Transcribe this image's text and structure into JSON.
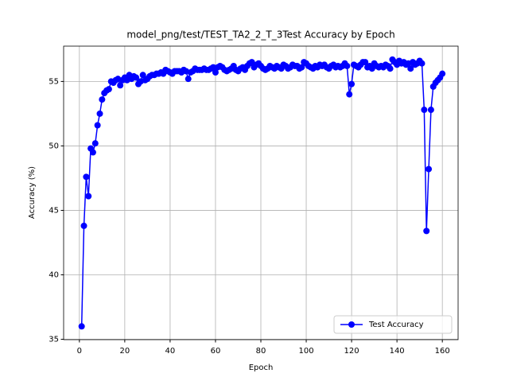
{
  "chart_data": {
    "type": "line",
    "title": "model_png/test/TEST_TA2_2_T_3Test Accuracy by Epoch",
    "xlabel": "Epoch",
    "ylabel": "Accuracy (%)",
    "x": [
      1,
      2,
      3,
      4,
      5,
      6,
      7,
      8,
      9,
      10,
      11,
      12,
      13,
      14,
      15,
      16,
      17,
      18,
      19,
      20,
      21,
      22,
      23,
      24,
      25,
      26,
      27,
      28,
      29,
      30,
      31,
      32,
      33,
      34,
      35,
      36,
      37,
      38,
      39,
      40,
      41,
      42,
      43,
      44,
      45,
      46,
      47,
      48,
      49,
      50,
      51,
      52,
      53,
      54,
      55,
      56,
      57,
      58,
      59,
      60,
      61,
      62,
      63,
      64,
      65,
      66,
      67,
      68,
      69,
      70,
      71,
      72,
      73,
      74,
      75,
      76,
      77,
      78,
      79,
      80,
      81,
      82,
      83,
      84,
      85,
      86,
      87,
      88,
      89,
      90,
      91,
      92,
      93,
      94,
      95,
      96,
      97,
      98,
      99,
      100,
      101,
      102,
      103,
      104,
      105,
      106,
      107,
      108,
      109,
      110,
      111,
      112,
      113,
      114,
      115,
      116,
      117,
      118,
      119,
      120,
      121,
      122,
      123,
      124,
      125,
      126,
      127,
      128,
      129,
      130,
      131,
      132,
      133,
      134,
      135,
      136,
      137,
      138,
      139,
      140,
      141,
      142,
      143,
      144,
      145,
      146,
      147,
      148,
      149,
      150,
      151,
      152,
      153,
      154,
      155,
      156,
      157,
      158,
      159,
      160
    ],
    "series": [
      {
        "name": "Test Accuracy",
        "color": "#0000ff",
        "values": [
          36.0,
          43.8,
          47.6,
          46.1,
          49.8,
          49.5,
          50.2,
          51.6,
          52.5,
          53.6,
          54.1,
          54.3,
          54.4,
          55.0,
          54.9,
          55.1,
          55.2,
          54.7,
          55.1,
          55.3,
          55.1,
          55.5,
          55.2,
          55.4,
          55.3,
          54.8,
          55.0,
          55.5,
          55.1,
          55.2,
          55.4,
          55.5,
          55.5,
          55.6,
          55.6,
          55.7,
          55.6,
          55.9,
          55.8,
          55.7,
          55.6,
          55.8,
          55.8,
          55.8,
          55.7,
          55.9,
          55.8,
          55.2,
          55.7,
          55.8,
          56.0,
          55.9,
          55.9,
          55.9,
          56.0,
          55.9,
          55.9,
          56.0,
          56.1,
          55.7,
          56.1,
          56.2,
          56.1,
          55.9,
          55.8,
          55.9,
          56.0,
          56.2,
          55.9,
          55.8,
          56.0,
          56.1,
          55.9,
          56.2,
          56.4,
          56.5,
          56.1,
          56.3,
          56.4,
          56.2,
          56.0,
          55.9,
          56.0,
          56.2,
          56.1,
          56.0,
          56.2,
          56.1,
          56.0,
          56.3,
          56.2,
          56.0,
          56.1,
          56.3,
          56.2,
          56.2,
          56.0,
          56.1,
          56.5,
          56.4,
          56.2,
          56.1,
          56.0,
          56.2,
          56.1,
          56.3,
          56.2,
          56.3,
          56.1,
          56.0,
          56.2,
          56.3,
          56.1,
          56.2,
          56.1,
          56.2,
          56.4,
          56.2,
          54.0,
          54.8,
          56.3,
          56.2,
          56.1,
          56.3,
          56.5,
          56.5,
          56.1,
          56.2,
          56.0,
          56.4,
          56.2,
          56.1,
          56.2,
          56.1,
          56.3,
          56.2,
          56.0,
          56.7,
          56.5,
          56.3,
          56.6,
          56.4,
          56.5,
          56.3,
          56.4,
          56.0,
          56.5,
          56.3,
          56.4,
          56.6,
          56.4,
          52.8,
          43.4,
          48.2,
          52.8,
          54.6,
          54.9,
          55.1,
          55.3,
          55.6
        ]
      }
    ],
    "xlim": [
      -6.95,
      166.95
    ],
    "xticks": [
      0,
      20,
      40,
      60,
      80,
      100,
      120,
      140,
      160
    ],
    "ylim": [
      34.97,
      57.74
    ],
    "yticks": [
      35,
      40,
      45,
      50,
      55
    ],
    "grid": true,
    "legend": "lower right"
  }
}
